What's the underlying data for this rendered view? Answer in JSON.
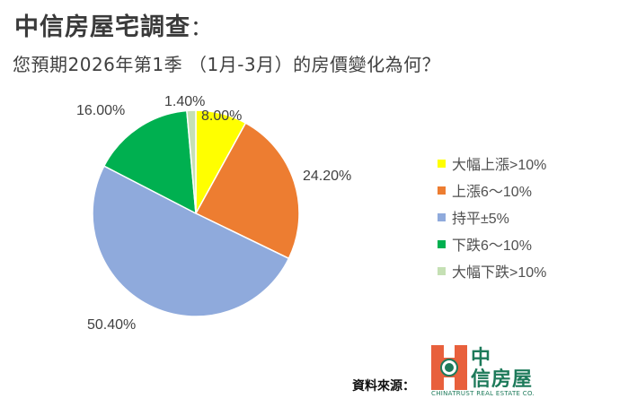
{
  "header": {
    "title": "中信房屋宅調查",
    "title_colon": "：",
    "subtitle": "您預期2026年第1季 （1月-3月）的房價變化為何？"
  },
  "chart_data": {
    "type": "pie",
    "title": "您預期2026年第1季 （1月-3月）的房價變化為何？",
    "categories": [
      "大幅上漲>10%",
      "上漲6～10%",
      "持平±5%",
      "下跌6～10%",
      "大幅下跌>10%"
    ],
    "values": [
      8.0,
      24.2,
      50.4,
      16.0,
      1.4
    ],
    "labels": [
      "8.00%",
      "24.20%",
      "50.40%",
      "16.00%",
      "1.40%"
    ],
    "colors": [
      "#ffff00",
      "#ed7d31",
      "#8faadc",
      "#00b050",
      "#c5e0b4"
    ],
    "legend_position": "right",
    "start_angle_deg": 0,
    "direction": "clockwise"
  },
  "legend": {
    "items": [
      {
        "label": "大幅上漲>10%",
        "color": "#ffff00"
      },
      {
        "label": "上漲6～10%",
        "color": "#ed7d31"
      },
      {
        "label": "持平±5%",
        "color": "#8faadc"
      },
      {
        "label": "下跌6～10%",
        "color": "#00b050"
      },
      {
        "label": "大幅下跌>10%",
        "color": "#c5e0b4"
      }
    ]
  },
  "footer": {
    "source_label": "資料來源：",
    "logo_cn_top": "中",
    "logo_cn_bottom": "信房屋",
    "logo_en": "CHINATRUST REAL ESTATE CO."
  }
}
